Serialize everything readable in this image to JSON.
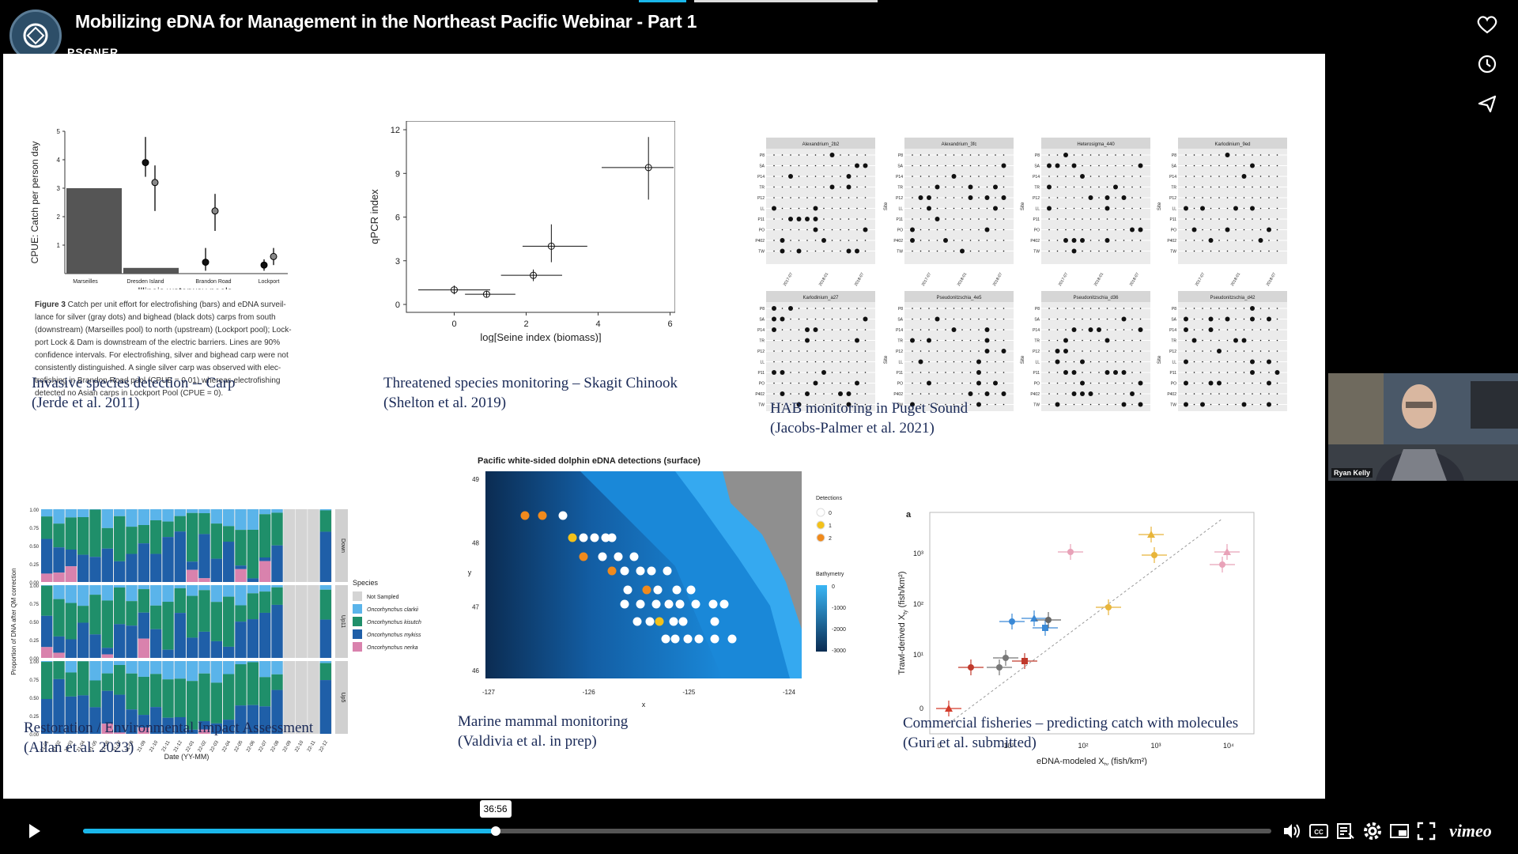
{
  "header": {
    "title": "Mobilizing eDNA for Management in the Northeast Pacific Webinar - Part 1",
    "channel": "PSGNER"
  },
  "slide": {
    "captions": [
      {
        "id": "carp",
        "text": "Invasive species detection -- Carp\n(Jerde et al. 2011)"
      },
      {
        "id": "chinook",
        "text": "Threatened species monitoring – Skagit Chinook\n(Shelton et al. 2019)"
      },
      {
        "id": "hab",
        "text": "HAB monitoring in Puget Sound\n(Jacobs-Palmer et al. 2021)"
      },
      {
        "id": "restoration",
        "text": "Restoration / Environmental Impact Assessment\n(Allan et al. 2023)"
      },
      {
        "id": "mammal",
        "text": "Marine mammal monitoring\n(Valdivia et al. in prep)"
      },
      {
        "id": "fisheries",
        "text": "Commercial fisheries – predicting catch with molecules\n(Guri et al. submitted)"
      }
    ],
    "carp_fig": {
      "ylabel": "CPUE: Catch per person day",
      "xlabel": "Illinois waterway pools",
      "categories": [
        "Marseilles",
        "Dresden Island",
        "Brandon Road",
        "Lockport"
      ],
      "yticks": [
        "1",
        "2",
        "3",
        "4",
        "5"
      ],
      "caption_bold": "Figure 3",
      "caption_text": " Catch per unit effort for electrofishing (bars) and eDNA surveil-\nlance for silver (gray dots) and bighead (black dots) carps from south\n(downstream) (Marseilles pool) to north (upstream) (Lockport pool); Lock-\nport Lock & Dam is downstream of the electric barriers. Lines are 90%\nconfidence intervals. For electrofishing, silver and bighead carp were not\nconsistently distinguished. A single silver carp was observed with elec-\ntrofishing in Brandon Road pool (CPUE = 0.01) whereas electrofishing\ndetected no Asian carps in Lockport Pool (CPUE = 0)."
    },
    "chinook_fig": {
      "ylabel": "qPCR index",
      "xlabel": "log[Seine index (biomass)]",
      "xticks": [
        "0",
        "2",
        "4",
        "6"
      ],
      "yticks": [
        "0",
        "3",
        "6",
        "9",
        "12"
      ]
    },
    "hab_fig": {
      "panels": [
        "Alexandrium_2b2",
        "Alexandrium_3fc",
        "Heterosigma_440",
        "Karlodinium_9ed",
        "Karlodinium_a27",
        "Pseudonitzschia_4e5",
        "Pseudonitzschia_d36",
        "Pseudonitzschia_d42"
      ],
      "sites": [
        "P8",
        "SA",
        "P14",
        "TR",
        "P12",
        "LL",
        "P11",
        "PO",
        "P402",
        "TW"
      ],
      "ylabel": "Site",
      "xticks": [
        "2017-07",
        "2018-01",
        "2018-07"
      ]
    },
    "restoration_fig": {
      "ylabel": "Proportion of DNA after QM correction",
      "xlabel": "Date (YY-MM)",
      "facets": [
        "Down",
        "Up11",
        "Up5"
      ],
      "yticks": [
        "0.00",
        "0.25",
        "0.50",
        "0.75",
        "1.00"
      ],
      "legend_title": "Species",
      "legend": [
        "Not Sampled",
        "Oncorhynchus clarkii",
        "Oncorhynchus kisutch",
        "Oncorhynchus mykiss",
        "Oncorhynchus nerka"
      ]
    },
    "mammal_fig": {
      "title": "Pacific white-sided dolphin eDNA detections (surface)",
      "xlabel": "x",
      "ylabel": "y",
      "xticks": [
        "-127",
        "-126",
        "-125",
        "-124"
      ],
      "yticks": [
        "49",
        "48",
        "47",
        "46"
      ],
      "legend_detect_title": "Detections",
      "legend_detect": [
        "0",
        "1",
        "2"
      ],
      "legend_bathy_title": "Bathymetry",
      "legend_bathy": [
        "0",
        "-1000",
        "-2000",
        "-3000"
      ]
    },
    "fisheries_fig": {
      "panel_label": "a",
      "xlabel": "eDNA-modeled X",
      "xlabel_sub": "ty",
      "xlabel_unit": " (fish/km²)",
      "ylabel": "Trawl-derived X",
      "ylabel_sub": "ty",
      "ylabel_unit": " (fish/km²)",
      "xticks": [
        "0",
        "10¹",
        "10²",
        "10³",
        "10⁴"
      ],
      "yticks": [
        "0",
        "10¹",
        "10²",
        "10³"
      ]
    }
  },
  "webcam": {
    "name": "Ryan Kelly"
  },
  "player": {
    "current_time": "36:56",
    "progress": 0.347,
    "brand": "vimeo"
  },
  "colors": {
    "accent": "#1ab7ea",
    "caption": "#1b2b58"
  }
}
